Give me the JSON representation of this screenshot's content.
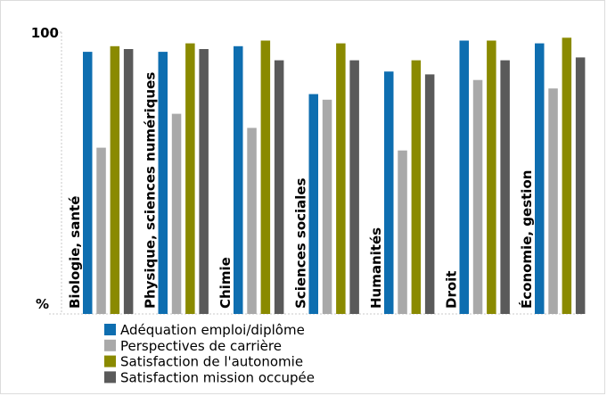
{
  "chart_data": {
    "type": "bar",
    "categories": [
      "Biologie, santé",
      "Physique, sciences numériques",
      "Chimie",
      "Sciences sociales",
      "Humanités",
      "Droit",
      "Économie, gestion"
    ],
    "series": [
      {
        "name": "Adéquation emploi/diplôme",
        "color": "#0e6eb0",
        "values": [
          93,
          93,
          95,
          78,
          86,
          97,
          96
        ]
      },
      {
        "name": "Perspectives de carrière",
        "color": "#a9a9a9",
        "values": [
          59,
          71,
          66,
          76,
          58,
          83,
          80
        ]
      },
      {
        "name": "Satisfaction de l'autonomie",
        "color": "#8a8a00",
        "values": [
          95,
          96,
          97,
          96,
          90,
          97,
          98
        ]
      },
      {
        "name": "Satisfaction mission occupée",
        "color": "#5a5a5a",
        "values": [
          94,
          94,
          90,
          90,
          85,
          90,
          91
        ]
      }
    ],
    "yticks": {
      "top": "100",
      "bottom": "%"
    },
    "ylim": [
      0,
      100
    ],
    "grid": false,
    "legend_position": "bottom-left"
  }
}
